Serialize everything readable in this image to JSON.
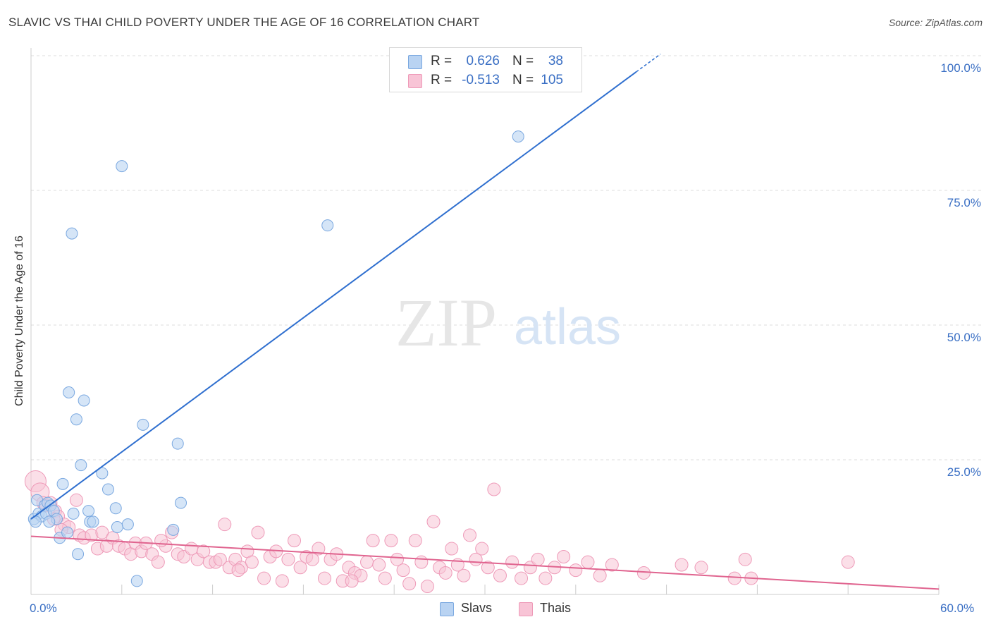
{
  "title": "SLAVIC VS THAI CHILD POVERTY UNDER THE AGE OF 16 CORRELATION CHART",
  "source": "Source: ZipAtlas.com",
  "watermark": {
    "zip": "ZIP",
    "atlas": "atlas"
  },
  "legend": {
    "slavs": {
      "r_label": "R =",
      "r_value": "0.626",
      "n_label": "N =",
      "n_value": "38"
    },
    "thais": {
      "r_label": "R =",
      "r_value": "-0.513",
      "n_label": "N =",
      "n_value": "105"
    }
  },
  "bottom_legend": {
    "slavs": "Slavs",
    "thais": "Thais"
  },
  "colors": {
    "slavs_fill": "#b9d3f2",
    "slavs_stroke": "#7aa8e0",
    "slavs_line": "#2f6fcf",
    "thais_fill": "#f8c4d6",
    "thais_stroke": "#ee9ab8",
    "thais_line": "#e0648f",
    "grid": "#dddddd",
    "axis_text": "#3a6fc4"
  },
  "chart_data": {
    "type": "scatter",
    "title": "SLAVIC VS THAI CHILD POVERTY UNDER THE AGE OF 16 CORRELATION CHART",
    "xlabel": "",
    "ylabel": "Child Poverty Under the Age of 16",
    "xlim": [
      0,
      60
    ],
    "ylim": [
      0,
      100
    ],
    "x_tick_labels": [
      "0.0%",
      "60.0%"
    ],
    "y_tick_labels": [
      "25.0%",
      "50.0%",
      "75.0%",
      "100.0%"
    ],
    "y_tick_values": [
      25,
      50,
      75,
      100
    ],
    "series": [
      {
        "name": "Slavs",
        "points": [
          [
            0.2,
            14.0
          ],
          [
            0.4,
            17.5
          ],
          [
            0.5,
            15.0
          ],
          [
            0.7,
            14.5
          ],
          [
            0.9,
            16.5
          ],
          [
            1.0,
            15.0
          ],
          [
            1.1,
            17.0
          ],
          [
            1.3,
            16.5
          ],
          [
            1.5,
            15.5
          ],
          [
            1.7,
            14.0
          ],
          [
            1.9,
            10.5
          ],
          [
            2.1,
            20.5
          ],
          [
            2.4,
            11.5
          ],
          [
            2.5,
            37.5
          ],
          [
            2.7,
            67.0
          ],
          [
            3.0,
            32.5
          ],
          [
            3.1,
            7.5
          ],
          [
            3.3,
            24.0
          ],
          [
            3.5,
            36.0
          ],
          [
            3.8,
            15.5
          ],
          [
            3.9,
            13.5
          ],
          [
            4.1,
            13.5
          ],
          [
            4.7,
            22.5
          ],
          [
            5.1,
            19.5
          ],
          [
            5.6,
            16.0
          ],
          [
            5.7,
            12.5
          ],
          [
            6.0,
            79.5
          ],
          [
            6.4,
            13.0
          ],
          [
            7.0,
            2.5
          ],
          [
            7.4,
            31.5
          ],
          [
            9.4,
            12.0
          ],
          [
            9.7,
            28.0
          ],
          [
            9.9,
            17.0
          ],
          [
            19.6,
            68.5
          ],
          [
            32.2,
            85.0
          ],
          [
            0.3,
            13.5
          ],
          [
            1.2,
            13.5
          ],
          [
            2.8,
            15.0
          ]
        ],
        "trend": {
          "x": [
            0,
            40
          ],
          "y": [
            14.0,
            97.0
          ]
        }
      },
      {
        "name": "Thais",
        "points": [
          [
            0.3,
            21.0
          ],
          [
            0.6,
            19.0
          ],
          [
            0.8,
            17.0
          ],
          [
            1.0,
            16.5
          ],
          [
            1.3,
            17.0
          ],
          [
            1.6,
            15.5
          ],
          [
            1.8,
            14.5
          ],
          [
            2.2,
            13.0
          ],
          [
            2.5,
            12.5
          ],
          [
            3.0,
            17.5
          ],
          [
            3.2,
            11.0
          ],
          [
            3.5,
            10.5
          ],
          [
            4.0,
            11.0
          ],
          [
            4.4,
            8.5
          ],
          [
            4.7,
            11.5
          ],
          [
            5.0,
            9.0
          ],
          [
            5.4,
            10.5
          ],
          [
            5.8,
            9.0
          ],
          [
            6.2,
            8.5
          ],
          [
            6.6,
            7.5
          ],
          [
            6.9,
            9.5
          ],
          [
            7.3,
            8.0
          ],
          [
            7.6,
            9.5
          ],
          [
            8.0,
            7.5
          ],
          [
            8.4,
            6.0
          ],
          [
            8.9,
            9.0
          ],
          [
            9.3,
            11.5
          ],
          [
            9.7,
            7.5
          ],
          [
            10.1,
            7.0
          ],
          [
            10.6,
            8.5
          ],
          [
            11.0,
            6.5
          ],
          [
            11.4,
            8.0
          ],
          [
            11.8,
            6.0
          ],
          [
            12.2,
            6.0
          ],
          [
            12.5,
            6.5
          ],
          [
            12.8,
            13.0
          ],
          [
            13.1,
            5.0
          ],
          [
            13.5,
            6.5
          ],
          [
            13.9,
            5.0
          ],
          [
            14.3,
            8.0
          ],
          [
            14.6,
            6.0
          ],
          [
            15.0,
            11.5
          ],
          [
            15.4,
            3.0
          ],
          [
            15.8,
            7.0
          ],
          [
            16.2,
            8.0
          ],
          [
            16.6,
            2.5
          ],
          [
            17.0,
            6.5
          ],
          [
            17.4,
            10.0
          ],
          [
            17.8,
            5.0
          ],
          [
            18.2,
            7.0
          ],
          [
            18.6,
            6.5
          ],
          [
            19.0,
            8.5
          ],
          [
            19.4,
            3.0
          ],
          [
            19.8,
            6.5
          ],
          [
            20.2,
            7.5
          ],
          [
            20.6,
            2.5
          ],
          [
            21.0,
            5.0
          ],
          [
            21.4,
            4.0
          ],
          [
            21.8,
            3.5
          ],
          [
            22.2,
            6.0
          ],
          [
            22.6,
            10.0
          ],
          [
            23.0,
            5.5
          ],
          [
            23.4,
            3.0
          ],
          [
            23.8,
            10.0
          ],
          [
            24.2,
            6.5
          ],
          [
            24.6,
            4.5
          ],
          [
            25.0,
            2.0
          ],
          [
            25.4,
            10.0
          ],
          [
            25.8,
            6.0
          ],
          [
            26.2,
            1.5
          ],
          [
            26.6,
            13.5
          ],
          [
            27.0,
            5.0
          ],
          [
            27.4,
            4.0
          ],
          [
            27.8,
            8.5
          ],
          [
            28.2,
            5.5
          ],
          [
            28.6,
            3.5
          ],
          [
            29.0,
            11.0
          ],
          [
            29.4,
            6.5
          ],
          [
            29.8,
            8.5
          ],
          [
            30.2,
            5.0
          ],
          [
            30.6,
            19.5
          ],
          [
            31.0,
            3.5
          ],
          [
            31.8,
            6.0
          ],
          [
            32.4,
            3.0
          ],
          [
            33.0,
            5.0
          ],
          [
            33.5,
            6.5
          ],
          [
            34.0,
            3.0
          ],
          [
            34.6,
            5.0
          ],
          [
            35.2,
            7.0
          ],
          [
            36.0,
            4.5
          ],
          [
            36.8,
            6.0
          ],
          [
            37.6,
            3.5
          ],
          [
            38.4,
            5.5
          ],
          [
            40.5,
            4.0
          ],
          [
            43.0,
            5.5
          ],
          [
            44.3,
            5.0
          ],
          [
            46.5,
            3.0
          ],
          [
            47.2,
            6.5
          ],
          [
            47.6,
            3.0
          ],
          [
            54.0,
            6.0
          ],
          [
            1.5,
            14.0
          ],
          [
            2.0,
            12.0
          ],
          [
            8.6,
            10.0
          ],
          [
            13.7,
            4.5
          ],
          [
            21.2,
            2.5
          ]
        ],
        "trend": {
          "x": [
            0,
            60
          ],
          "y": [
            10.8,
            1.0
          ]
        }
      }
    ]
  }
}
